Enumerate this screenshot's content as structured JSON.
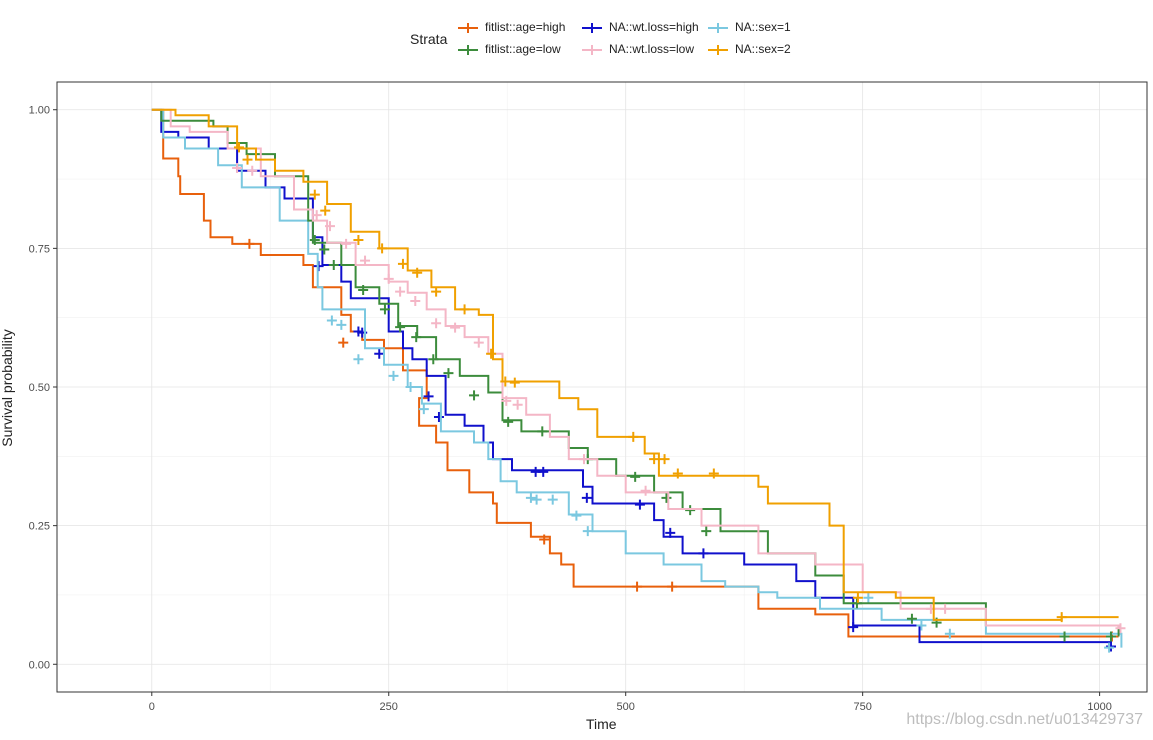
{
  "chart_data": {
    "type": "line",
    "subtype": "step",
    "xlabel": "Time",
    "ylabel": "Survival probability",
    "xlim": [
      -100,
      1050
    ],
    "ylim": [
      -0.05,
      1.05
    ],
    "xticks": [
      0,
      250,
      500,
      750,
      1000
    ],
    "yticks": [
      0.0,
      0.25,
      0.5,
      0.75,
      1.0
    ],
    "xtick_labels": [
      "0",
      "250",
      "500",
      "750",
      "1000"
    ],
    "ytick_labels": [
      "0.00",
      "0.25",
      "0.50",
      "0.75",
      "1.00"
    ],
    "grid": true,
    "legend": {
      "title": "Strata",
      "position": "top"
    },
    "series": [
      {
        "name": "fitlist::age=high",
        "color": "#E8600C",
        "points": [
          [
            0,
            1.0
          ],
          [
            12,
            0.912
          ],
          [
            28,
            0.88
          ],
          [
            30,
            0.848
          ],
          [
            55,
            0.8
          ],
          [
            62,
            0.77
          ],
          [
            85,
            0.758
          ],
          [
            115,
            0.738
          ],
          [
            160,
            0.72
          ],
          [
            170,
            0.68
          ],
          [
            200,
            0.63
          ],
          [
            210,
            0.6
          ],
          [
            222,
            0.585
          ],
          [
            245,
            0.57
          ],
          [
            265,
            0.53
          ],
          [
            290,
            0.48
          ],
          [
            282,
            0.43
          ],
          [
            300,
            0.4
          ],
          [
            312,
            0.35
          ],
          [
            335,
            0.31
          ],
          [
            345,
            0.31
          ],
          [
            360,
            0.29
          ],
          [
            364,
            0.255
          ],
          [
            400,
            0.23
          ],
          [
            420,
            0.2
          ],
          [
            432,
            0.18
          ],
          [
            445,
            0.14
          ],
          [
            640,
            0.14
          ],
          [
            640,
            0.1
          ],
          [
            700,
            0.09
          ],
          [
            735,
            0.05
          ],
          [
            1020,
            0.05
          ]
        ],
        "censors": [
          [
            103,
            0.758
          ],
          [
            202,
            0.58
          ],
          [
            414,
            0.225
          ],
          [
            512,
            0.14
          ],
          [
            549,
            0.14
          ],
          [
            1013,
            0.05
          ]
        ]
      },
      {
        "name": "NA::wt.loss=high",
        "color": "#1010CC",
        "points": [
          [
            0,
            1.0
          ],
          [
            10,
            0.96
          ],
          [
            28,
            0.95
          ],
          [
            60,
            0.93
          ],
          [
            90,
            0.89
          ],
          [
            120,
            0.86
          ],
          [
            140,
            0.84
          ],
          [
            170,
            0.77
          ],
          [
            180,
            0.72
          ],
          [
            200,
            0.69
          ],
          [
            210,
            0.66
          ],
          [
            250,
            0.6
          ],
          [
            265,
            0.57
          ],
          [
            275,
            0.55
          ],
          [
            290,
            0.52
          ],
          [
            310,
            0.45
          ],
          [
            330,
            0.43
          ],
          [
            350,
            0.4
          ],
          [
            360,
            0.37
          ],
          [
            380,
            0.35
          ],
          [
            455,
            0.32
          ],
          [
            465,
            0.29
          ],
          [
            530,
            0.26
          ],
          [
            540,
            0.23
          ],
          [
            560,
            0.2
          ],
          [
            625,
            0.18
          ],
          [
            680,
            0.15
          ],
          [
            700,
            0.12
          ],
          [
            740,
            0.07
          ],
          [
            810,
            0.04
          ],
          [
            1010,
            0.035
          ]
        ],
        "censors": [
          [
            176,
            0.718
          ],
          [
            218,
            0.6
          ],
          [
            222,
            0.598
          ],
          [
            240,
            0.56
          ],
          [
            292,
            0.483
          ],
          [
            303,
            0.446
          ],
          [
            405,
            0.347
          ],
          [
            413,
            0.347
          ],
          [
            459,
            0.3
          ],
          [
            515,
            0.288
          ],
          [
            547,
            0.237
          ],
          [
            582,
            0.2
          ],
          [
            740,
            0.067
          ],
          [
            1012,
            0.032
          ]
        ]
      },
      {
        "name": "NA::sex=1",
        "color": "#7BC8E0",
        "points": [
          [
            0,
            1.0
          ],
          [
            12,
            0.95
          ],
          [
            35,
            0.93
          ],
          [
            70,
            0.9
          ],
          [
            95,
            0.86
          ],
          [
            135,
            0.8
          ],
          [
            165,
            0.74
          ],
          [
            175,
            0.68
          ],
          [
            180,
            0.64
          ],
          [
            225,
            0.57
          ],
          [
            245,
            0.54
          ],
          [
            270,
            0.5
          ],
          [
            285,
            0.47
          ],
          [
            305,
            0.42
          ],
          [
            340,
            0.4
          ],
          [
            355,
            0.37
          ],
          [
            368,
            0.33
          ],
          [
            385,
            0.31
          ],
          [
            440,
            0.27
          ],
          [
            465,
            0.24
          ],
          [
            500,
            0.2
          ],
          [
            540,
            0.18
          ],
          [
            580,
            0.15
          ],
          [
            605,
            0.14
          ],
          [
            640,
            0.13
          ],
          [
            660,
            0.12
          ],
          [
            705,
            0.1
          ],
          [
            770,
            0.08
          ],
          [
            880,
            0.055
          ],
          [
            1023,
            0.03
          ]
        ],
        "censors": [
          [
            190,
            0.62
          ],
          [
            200,
            0.612
          ],
          [
            218,
            0.55
          ],
          [
            255,
            0.52
          ],
          [
            273,
            0.5
          ],
          [
            287,
            0.46
          ],
          [
            400,
            0.3
          ],
          [
            406,
            0.297
          ],
          [
            423,
            0.297
          ],
          [
            448,
            0.268
          ],
          [
            460,
            0.24
          ],
          [
            756,
            0.12
          ],
          [
            812,
            0.07
          ],
          [
            842,
            0.055
          ],
          [
            1010,
            0.03
          ]
        ]
      },
      {
        "name": "fitlist::age=low",
        "color": "#3C8C3C",
        "points": [
          [
            0,
            1.0
          ],
          [
            10,
            0.98
          ],
          [
            65,
            0.97
          ],
          [
            80,
            0.94
          ],
          [
            100,
            0.92
          ],
          [
            130,
            0.88
          ],
          [
            165,
            0.8
          ],
          [
            170,
            0.76
          ],
          [
            200,
            0.72
          ],
          [
            215,
            0.68
          ],
          [
            240,
            0.65
          ],
          [
            260,
            0.61
          ],
          [
            280,
            0.59
          ],
          [
            300,
            0.55
          ],
          [
            325,
            0.52
          ],
          [
            355,
            0.49
          ],
          [
            370,
            0.44
          ],
          [
            390,
            0.42
          ],
          [
            440,
            0.39
          ],
          [
            460,
            0.37
          ],
          [
            490,
            0.34
          ],
          [
            530,
            0.31
          ],
          [
            560,
            0.28
          ],
          [
            600,
            0.24
          ],
          [
            650,
            0.2
          ],
          [
            700,
            0.16
          ],
          [
            730,
            0.11
          ],
          [
            880,
            0.07
          ],
          [
            1020,
            0.05
          ]
        ],
        "censors": [
          [
            172,
            0.765
          ],
          [
            182,
            0.748
          ],
          [
            192,
            0.72
          ],
          [
            223,
            0.675
          ],
          [
            246,
            0.64
          ],
          [
            262,
            0.608
          ],
          [
            279,
            0.59
          ],
          [
            297,
            0.55
          ],
          [
            313,
            0.525
          ],
          [
            340,
            0.485
          ],
          [
            376,
            0.437
          ],
          [
            412,
            0.42
          ],
          [
            460,
            0.37
          ],
          [
            510,
            0.338
          ],
          [
            543,
            0.3
          ],
          [
            568,
            0.278
          ],
          [
            585,
            0.24
          ],
          [
            744,
            0.11
          ],
          [
            802,
            0.082
          ],
          [
            828,
            0.075
          ],
          [
            963,
            0.05
          ],
          [
            1012,
            0.05
          ]
        ]
      },
      {
        "name": "NA::wt.loss=low",
        "color": "#F4B6C6",
        "points": [
          [
            0,
            1.0
          ],
          [
            20,
            0.97
          ],
          [
            40,
            0.96
          ],
          [
            80,
            0.93
          ],
          [
            115,
            0.88
          ],
          [
            150,
            0.82
          ],
          [
            170,
            0.8
          ],
          [
            185,
            0.76
          ],
          [
            215,
            0.72
          ],
          [
            250,
            0.69
          ],
          [
            270,
            0.67
          ],
          [
            290,
            0.64
          ],
          [
            310,
            0.61
          ],
          [
            330,
            0.59
          ],
          [
            355,
            0.56
          ],
          [
            370,
            0.48
          ],
          [
            395,
            0.45
          ],
          [
            420,
            0.41
          ],
          [
            440,
            0.37
          ],
          [
            470,
            0.34
          ],
          [
            500,
            0.31
          ],
          [
            545,
            0.28
          ],
          [
            580,
            0.25
          ],
          [
            640,
            0.2
          ],
          [
            700,
            0.18
          ],
          [
            750,
            0.13
          ],
          [
            790,
            0.1
          ],
          [
            880,
            0.07
          ],
          [
            1020,
            0.065
          ]
        ],
        "censors": [
          [
            90,
            0.895
          ],
          [
            106,
            0.89
          ],
          [
            174,
            0.81
          ],
          [
            188,
            0.79
          ],
          [
            205,
            0.758
          ],
          [
            225,
            0.728
          ],
          [
            250,
            0.695
          ],
          [
            262,
            0.672
          ],
          [
            278,
            0.655
          ],
          [
            300,
            0.615
          ],
          [
            320,
            0.607
          ],
          [
            345,
            0.58
          ],
          [
            374,
            0.475
          ],
          [
            386,
            0.468
          ],
          [
            456,
            0.37
          ],
          [
            521,
            0.313
          ],
          [
            822,
            0.1
          ],
          [
            837,
            0.1
          ],
          [
            1022,
            0.065
          ]
        ]
      },
      {
        "name": "NA::sex=2",
        "color": "#F0A000",
        "points": [
          [
            0,
            1.0
          ],
          [
            25,
            0.99
          ],
          [
            60,
            0.97
          ],
          [
            90,
            0.93
          ],
          [
            110,
            0.91
          ],
          [
            130,
            0.89
          ],
          [
            160,
            0.87
          ],
          [
            185,
            0.83
          ],
          [
            210,
            0.78
          ],
          [
            240,
            0.75
          ],
          [
            270,
            0.71
          ],
          [
            295,
            0.68
          ],
          [
            320,
            0.64
          ],
          [
            345,
            0.63
          ],
          [
            360,
            0.55
          ],
          [
            370,
            0.51
          ],
          [
            430,
            0.48
          ],
          [
            450,
            0.46
          ],
          [
            470,
            0.41
          ],
          [
            520,
            0.38
          ],
          [
            535,
            0.34
          ],
          [
            640,
            0.32
          ],
          [
            650,
            0.29
          ],
          [
            715,
            0.25
          ],
          [
            730,
            0.13
          ],
          [
            785,
            0.12
          ],
          [
            825,
            0.08
          ],
          [
            960,
            0.085
          ],
          [
            1020,
            0.085
          ]
        ],
        "censors": [
          [
            92,
            0.932
          ],
          [
            101,
            0.91
          ],
          [
            172,
            0.847
          ],
          [
            183,
            0.818
          ],
          [
            218,
            0.765
          ],
          [
            243,
            0.75
          ],
          [
            265,
            0.722
          ],
          [
            280,
            0.706
          ],
          [
            300,
            0.672
          ],
          [
            330,
            0.64
          ],
          [
            358,
            0.56
          ],
          [
            373,
            0.51
          ],
          [
            383,
            0.508
          ],
          [
            508,
            0.41
          ],
          [
            530,
            0.37
          ],
          [
            541,
            0.37
          ],
          [
            555,
            0.344
          ],
          [
            593,
            0.344
          ],
          [
            745,
            0.12
          ],
          [
            960,
            0.085
          ]
        ]
      }
    ]
  },
  "watermark": "https://blog.csdn.net/u013429737"
}
